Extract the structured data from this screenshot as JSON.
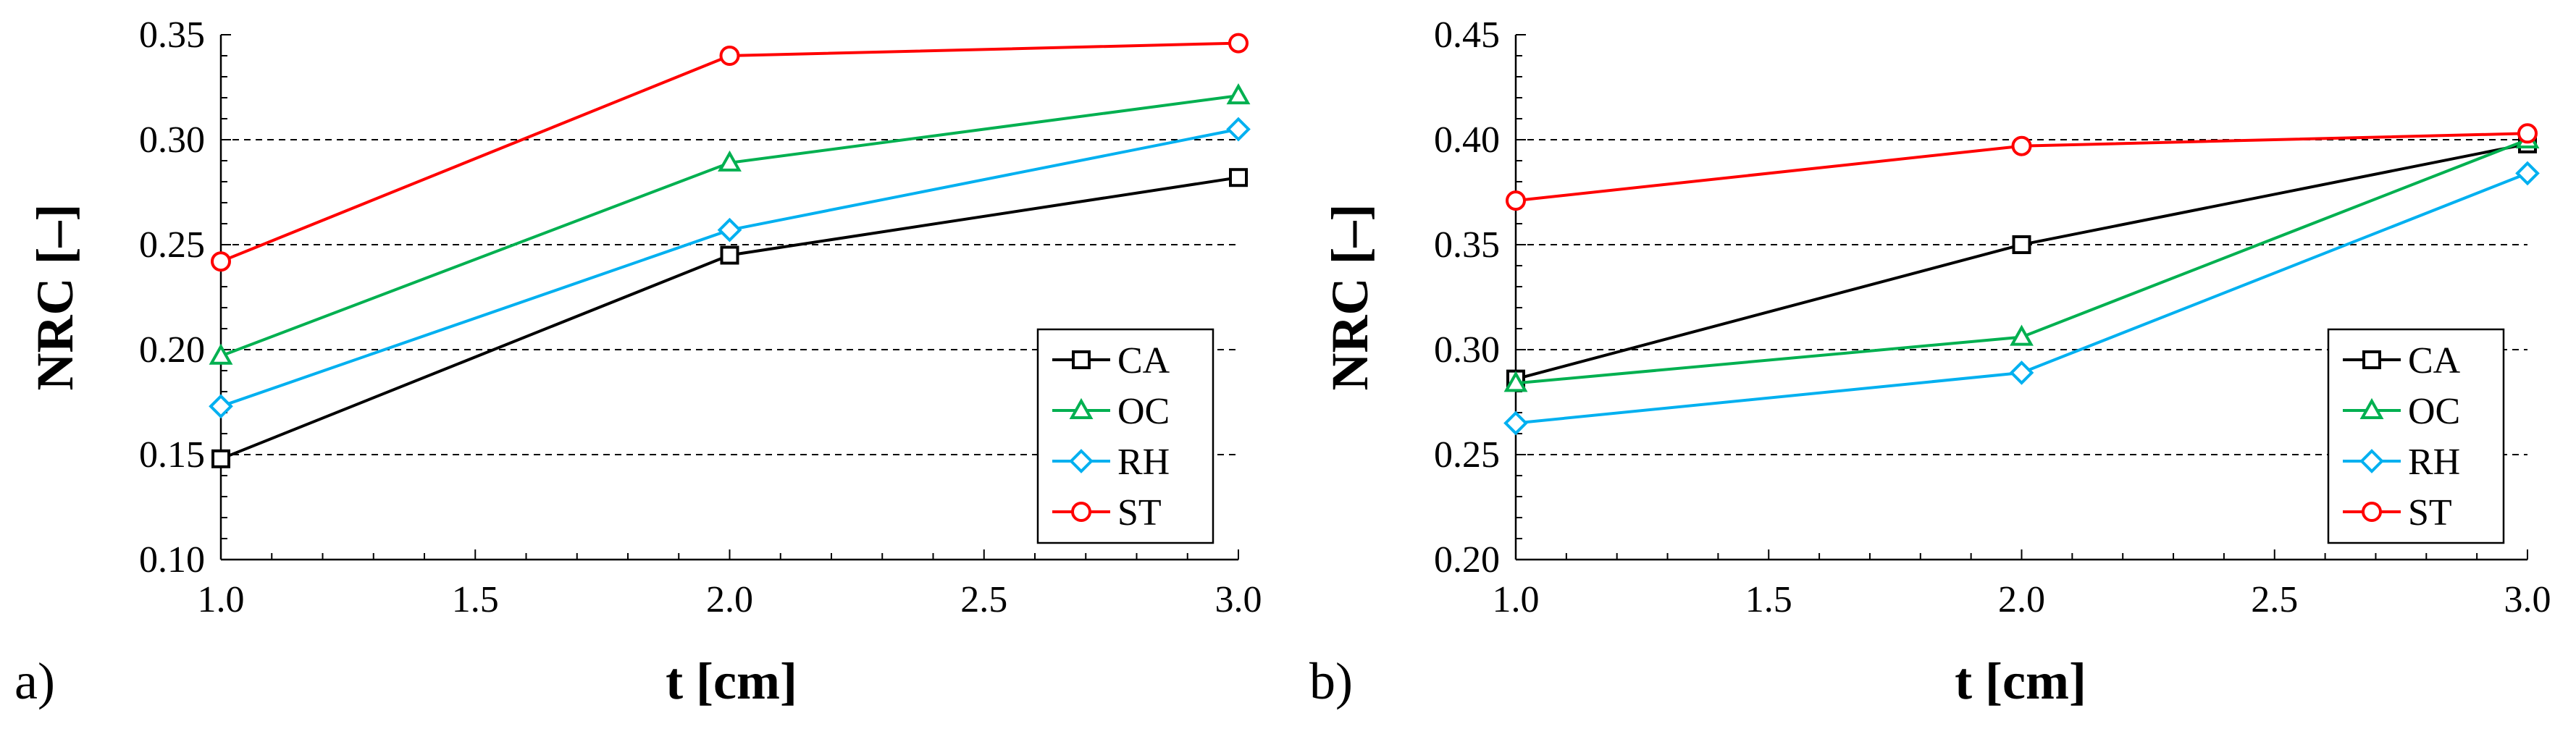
{
  "chart_data": [
    {
      "type": "line",
      "panel_label": "a)",
      "xlabel": "t [cm]",
      "ylabel": "NRC [–]",
      "xlim": [
        1.0,
        3.0
      ],
      "ylim": [
        0.1,
        0.35
      ],
      "x_ticks": [
        "1.0",
        "1.5",
        "2.0",
        "2.5",
        "3.0"
      ],
      "y_ticks": [
        "0.10",
        "0.15",
        "0.20",
        "0.25",
        "0.30",
        "0.35"
      ],
      "grid": "horizontal dashed",
      "legend_position": "bottom-right",
      "x": [
        1.0,
        2.0,
        3.0
      ],
      "series": [
        {
          "name": "CA",
          "values": [
            0.148,
            0.245,
            0.282
          ],
          "color": "#000000",
          "marker": "square"
        },
        {
          "name": "OC",
          "values": [
            0.197,
            0.289,
            0.321
          ],
          "color": "#00b050",
          "marker": "triangle"
        },
        {
          "name": "RH",
          "values": [
            0.173,
            0.257,
            0.305
          ],
          "color": "#00b0f0",
          "marker": "diamond"
        },
        {
          "name": "ST",
          "values": [
            0.242,
            0.34,
            0.346
          ],
          "color": "#ff0000",
          "marker": "circle"
        }
      ]
    },
    {
      "type": "line",
      "panel_label": "b)",
      "xlabel": "t [cm]",
      "ylabel": "NRC [–]",
      "xlim": [
        1.0,
        3.0
      ],
      "ylim": [
        0.2,
        0.45
      ],
      "x_ticks": [
        "1.0",
        "1.5",
        "2.0",
        "2.5",
        "3.0"
      ],
      "y_ticks": [
        "0.20",
        "0.25",
        "0.30",
        "0.35",
        "0.40",
        "0.45"
      ],
      "grid": "horizontal dashed",
      "legend_position": "bottom-right",
      "x": [
        1.0,
        2.0,
        3.0
      ],
      "series": [
        {
          "name": "CA",
          "values": [
            0.286,
            0.35,
            0.398
          ],
          "color": "#000000",
          "marker": "square"
        },
        {
          "name": "OC",
          "values": [
            0.284,
            0.306,
            0.4
          ],
          "color": "#00b050",
          "marker": "triangle"
        },
        {
          "name": "RH",
          "values": [
            0.265,
            0.289,
            0.384
          ],
          "color": "#00b0f0",
          "marker": "diamond"
        },
        {
          "name": "ST",
          "values": [
            0.371,
            0.397,
            0.403
          ],
          "color": "#ff0000",
          "marker": "circle"
        }
      ]
    }
  ]
}
